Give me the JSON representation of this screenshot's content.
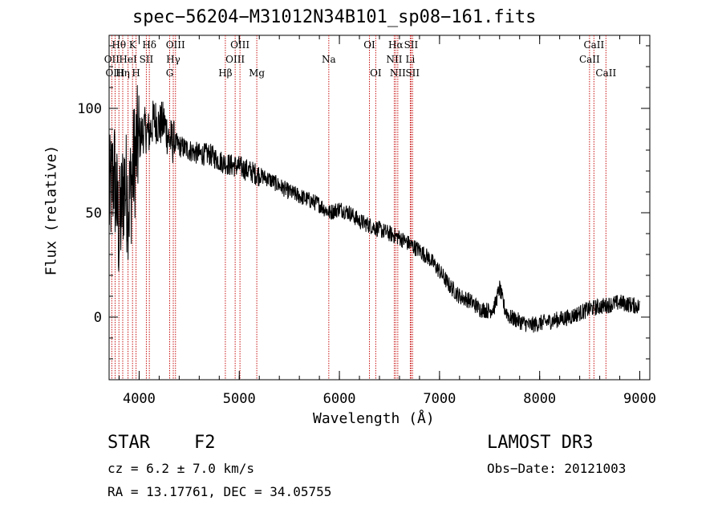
{
  "chart_data": {
    "type": "line",
    "title": "spec−56204−M31012N34B101_sp08−161.fits",
    "xlabel": "Wavelength (Å)",
    "ylabel": "Flux (relative)",
    "xlim": [
      3700,
      9100
    ],
    "ylim": [
      -30,
      135
    ],
    "xticks": [
      4000,
      5000,
      6000,
      7000,
      8000,
      9000
    ],
    "yticks": [
      0,
      50,
      100
    ],
    "series": [
      {
        "name": "flux",
        "x": [
          3700,
          3750,
          3800,
          3850,
          3900,
          3950,
          4000,
          4050,
          4100,
          4150,
          4200,
          4250,
          4300,
          4400,
          4500,
          4600,
          4700,
          4800,
          4900,
          5000,
          5100,
          5200,
          5300,
          5400,
          5500,
          5600,
          5700,
          5800,
          5900,
          6000,
          6100,
          6200,
          6300,
          6400,
          6500,
          6600,
          6700,
          6800,
          6900,
          7000,
          7100,
          7200,
          7300,
          7400,
          7500,
          7550,
          7600,
          7650,
          7700,
          7800,
          7900,
          8000,
          8100,
          8200,
          8300,
          8400,
          8500,
          8600,
          8700,
          8800,
          8900,
          9000
        ],
        "y": [
          55,
          70,
          40,
          65,
          55,
          75,
          85,
          90,
          88,
          95,
          92,
          93,
          85,
          82,
          80,
          78,
          78,
          75,
          73,
          72,
          70,
          68,
          66,
          63,
          60,
          58,
          56,
          54,
          50,
          52,
          50,
          46,
          44,
          42,
          40,
          38,
          35,
          32,
          28,
          22,
          15,
          10,
          8,
          4,
          3,
          5,
          14,
          4,
          0,
          -2,
          -4,
          -3,
          -2,
          -1,
          0,
          2,
          4,
          5,
          6,
          7,
          6,
          5
        ]
      }
    ],
    "lines": [
      {
        "label": "Hθ",
        "wave": 3798,
        "row": 1
      },
      {
        "label": "OII",
        "wave": 3727,
        "row": 2
      },
      {
        "label": "OIII",
        "wave": 3760,
        "row": 3
      },
      {
        "label": "Hη",
        "wave": 3836,
        "row": 3
      },
      {
        "label": "HeI",
        "wave": 3889,
        "row": 2
      },
      {
        "label": "K",
        "wave": 3934,
        "row": 1
      },
      {
        "label": "SII",
        "wave": 4072,
        "row": 2
      },
      {
        "label": "H",
        "wave": 3969,
        "row": 3
      },
      {
        "label": "Hδ",
        "wave": 4102,
        "row": 1
      },
      {
        "label": "OIII",
        "wave": 4363,
        "row": 1
      },
      {
        "label": "Hγ",
        "wave": 4341,
        "row": 2
      },
      {
        "label": "G",
        "wave": 4305,
        "row": 3
      },
      {
        "label": "Hβ",
        "wave": 4861,
        "row": 3
      },
      {
        "label": "OIII",
        "wave": 5007,
        "row": 1
      },
      {
        "label": "OIII",
        "wave": 4959,
        "row": 2
      },
      {
        "label": "Mg",
        "wave": 5175,
        "row": 3
      },
      {
        "label": "Na",
        "wave": 5894,
        "row": 2
      },
      {
        "label": "OI",
        "wave": 6300,
        "row": 1
      },
      {
        "label": "OI",
        "wave": 6363,
        "row": 3
      },
      {
        "label": "Hα",
        "wave": 6563,
        "row": 1
      },
      {
        "label": "NII",
        "wave": 6548,
        "row": 2
      },
      {
        "label": "NII",
        "wave": 6583,
        "row": 3
      },
      {
        "label": "SII",
        "wave": 6716,
        "row": 1
      },
      {
        "label": "Li",
        "wave": 6708,
        "row": 2
      },
      {
        "label": "SII",
        "wave": 6731,
        "row": 3
      },
      {
        "label": "CaII",
        "wave": 8542,
        "row": 1
      },
      {
        "label": "CaII",
        "wave": 8498,
        "row": 2
      },
      {
        "label": "CaII",
        "wave": 8662,
        "row": 3
      }
    ]
  },
  "footer": {
    "class_label": "STAR",
    "subclass": "F2",
    "survey": "LAMOST DR3",
    "redshift": "cz = 6.2 ± 7.0 km/s",
    "obs_date": "Obs−Date: 20121003",
    "coords": "RA =  13.17761, DEC =  34.05755"
  }
}
